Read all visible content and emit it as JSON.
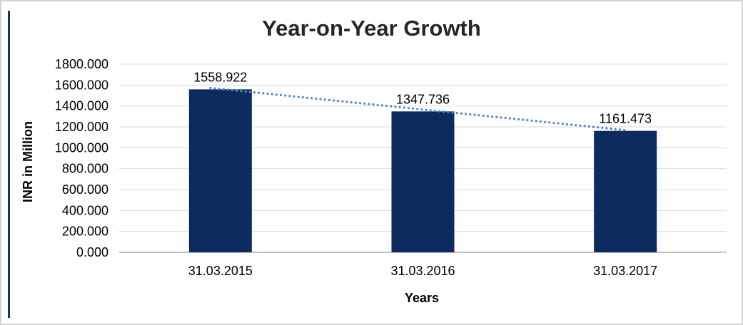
{
  "frame": {
    "background": "#ffffff",
    "outer_border_color": "#d3d3d3",
    "left_accent_line_color": "#17365d"
  },
  "chart_data": {
    "type": "bar",
    "title": "Year-on-Year Growth",
    "xlabel": "Years",
    "ylabel": "INR in Million",
    "categories": [
      "31.03.2015",
      "31.03.2016",
      "31.03.2017"
    ],
    "values": [
      1558.922,
      1347.736,
      1161.473
    ],
    "data_labels": [
      "1558.922",
      "1347.736",
      "1161.473"
    ],
    "ylim": [
      0,
      1800
    ],
    "ytick_step": 200,
    "yticks": [
      "1800.000",
      "1600.000",
      "1400.000",
      "1200.000",
      "1000.000",
      "800.000",
      "600.000",
      "400.000",
      "200.000",
      "0.000"
    ],
    "grid": true,
    "legend": "none",
    "bar_color": "#0e2b60",
    "gridline_color": "#d9d9d9",
    "axis_line_color": "#9d9d9d",
    "text_color": "#000000",
    "title_color": "#262626",
    "trendline": {
      "style": "dotted",
      "color": "#4f86c6",
      "from_value": 1558.922,
      "to_value": 1161.473
    }
  }
}
